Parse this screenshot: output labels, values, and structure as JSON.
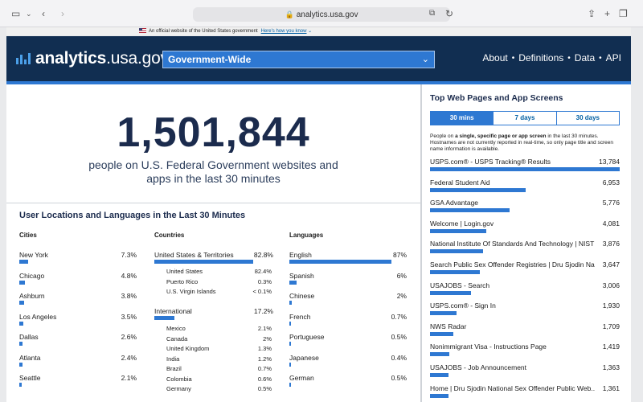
{
  "browser": {
    "url": "analytics.usa.gov"
  },
  "banner": {
    "text": "An official website of the United States government",
    "link": "Here's how you know"
  },
  "header": {
    "logo_bold": "analytics",
    "logo_rest": ".usa.gov",
    "agency_select": "Government-Wide",
    "nav": [
      "About",
      "Definitions",
      "Data",
      "API"
    ]
  },
  "realtime": {
    "count": "1,501,844",
    "caption_line1": "people on U.S. Federal Government websites and",
    "caption_line2": "apps in the last 30 minutes"
  },
  "locations": {
    "title": "User Locations and Languages in the Last 30 Minutes",
    "cities_header": "Cities",
    "countries_header": "Countries",
    "languages_header": "Languages",
    "cities": [
      {
        "label": "New York",
        "value": "7.3%",
        "pct": 7.3
      },
      {
        "label": "Chicago",
        "value": "4.8%",
        "pct": 4.8
      },
      {
        "label": "Ashburn",
        "value": "3.8%",
        "pct": 3.8
      },
      {
        "label": "Los Angeles",
        "value": "3.5%",
        "pct": 3.5
      },
      {
        "label": "Dallas",
        "value": "2.6%",
        "pct": 2.6
      },
      {
        "label": "Atlanta",
        "value": "2.4%",
        "pct": 2.4
      },
      {
        "label": "Seattle",
        "value": "2.1%",
        "pct": 2.1
      }
    ],
    "countries": {
      "us": {
        "label": "United States & Territories",
        "value": "82.8%",
        "pct": 82.8
      },
      "us_sub": [
        {
          "label": "United States",
          "value": "82.4%"
        },
        {
          "label": "Puerto Rico",
          "value": "0.3%"
        },
        {
          "label": "U.S. Virgin Islands",
          "value": "< 0.1%"
        }
      ],
      "intl": {
        "label": "International",
        "value": "17.2%",
        "pct": 17.2
      },
      "intl_sub": [
        {
          "label": "Mexico",
          "value": "2.1%"
        },
        {
          "label": "Canada",
          "value": "2%"
        },
        {
          "label": "United Kingdom",
          "value": "1.3%"
        },
        {
          "label": "India",
          "value": "1.2%"
        },
        {
          "label": "Brazil",
          "value": "0.7%"
        },
        {
          "label": "Colombia",
          "value": "0.6%"
        },
        {
          "label": "Germany",
          "value": "0.5%"
        }
      ]
    },
    "languages": [
      {
        "label": "English",
        "value": "87%",
        "pct": 87
      },
      {
        "label": "Spanish",
        "value": "6%",
        "pct": 6
      },
      {
        "label": "Chinese",
        "value": "2%",
        "pct": 2
      },
      {
        "label": "French",
        "value": "0.7%",
        "pct": 0.7
      },
      {
        "label": "Portuguese",
        "value": "0.5%",
        "pct": 0.5
      },
      {
        "label": "Japanese",
        "value": "0.4%",
        "pct": 0.4
      },
      {
        "label": "German",
        "value": "0.5%",
        "pct": 0.5
      }
    ]
  },
  "top_pages": {
    "title": "Top Web Pages and App Screens",
    "tabs": [
      "30 mins",
      "7 days",
      "30 days"
    ],
    "active_tab": "30 mins",
    "note_prefix": "People on ",
    "note_bold": "a single, specific page or app screen",
    "note_rest": " in the last 30 minutes. Hostnames are not currently reported in real-time, so only page title and screen name information is available.",
    "items": [
      {
        "label": "USPS.com® - USPS Tracking® Results",
        "value": "13,784",
        "num": 13784
      },
      {
        "label": "Federal Student Aid",
        "value": "6,953",
        "num": 6953
      },
      {
        "label": "GSA Advantage",
        "value": "5,776",
        "num": 5776
      },
      {
        "label": "Welcome | Login.gov",
        "value": "4,081",
        "num": 4081
      },
      {
        "label": "National Institute Of Standards And Technology | NIST",
        "value": "3,876",
        "num": 3876
      },
      {
        "label": "Search Public Sex Offender Registries | Dru Sjodin Na...",
        "value": "3,647",
        "num": 3647
      },
      {
        "label": "USAJOBS - Search",
        "value": "3,006",
        "num": 3006
      },
      {
        "label": "USPS.com® - Sign In",
        "value": "1,930",
        "num": 1930
      },
      {
        "label": "NWS Radar",
        "value": "1,709",
        "num": 1709
      },
      {
        "label": "Nonimmigrant Visa - Instructions Page",
        "value": "1,419",
        "num": 1419
      },
      {
        "label": "USAJOBS - Job Announcement",
        "value": "1,363",
        "num": 1363
      },
      {
        "label": "Home | Dru Sjodin National Sex Offender Public Web...",
        "value": "1,361",
        "num": 1361
      }
    ]
  },
  "colors": {
    "header_bg": "#112e51",
    "accent": "#2e78d2",
    "link": "#005ea2"
  }
}
